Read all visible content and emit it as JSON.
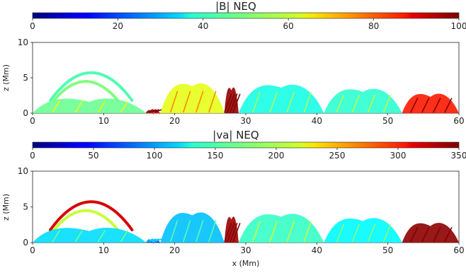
{
  "chart_data": [
    {
      "type": "heatmap",
      "title": "|B| NEQ",
      "colorbar": {
        "range": [
          0,
          100
        ],
        "ticks": [
          "0",
          "20",
          "40",
          "60",
          "80",
          "100"
        ],
        "colormap": "jet"
      },
      "xlim": [
        0,
        60
      ],
      "ylim": [
        0,
        10
      ],
      "xticks": [
        "0",
        "10",
        "20",
        "30",
        "40",
        "50",
        "60"
      ],
      "yticks": [
        "0",
        "5",
        "10"
      ],
      "xlabel": "",
      "ylabel": "z (Mm)",
      "structures": [
        {
          "kind": "arc",
          "x0": 2.5,
          "x1": 14,
          "peak": 5.6,
          "value": 45
        },
        {
          "kind": "arc",
          "x0": 3,
          "x1": 12,
          "peak": 4.3,
          "value": 50
        },
        {
          "kind": "lump",
          "x0": 0,
          "x1": 16,
          "peak": 2.6,
          "value": 48
        },
        {
          "kind": "lump",
          "x0": 16,
          "x1": 18,
          "peak": 0.8,
          "value": 90
        },
        {
          "kind": "lump",
          "x0": 18,
          "x1": 27,
          "peak": 4.8,
          "value": 60
        },
        {
          "kind": "lump",
          "x0": 27,
          "x1": 29,
          "peak": 4.2,
          "value": 98
        },
        {
          "kind": "lump",
          "x0": 29,
          "x1": 41,
          "peak": 4.6,
          "value": 40
        },
        {
          "kind": "lump",
          "x0": 41,
          "x1": 52,
          "peak": 4.0,
          "value": 42
        },
        {
          "kind": "lump",
          "x0": 52,
          "x1": 60,
          "peak": 3.3,
          "value": 85
        }
      ]
    },
    {
      "type": "heatmap",
      "title": "|va| NEQ",
      "colorbar": {
        "range": [
          0,
          350
        ],
        "ticks": [
          "0",
          "50",
          "100",
          "150",
          "200",
          "250",
          "300",
          "350"
        ],
        "colormap": "jet"
      },
      "xlim": [
        0,
        60
      ],
      "ylim": [
        0,
        10
      ],
      "xticks": [
        "0",
        "10",
        "20",
        "30",
        "40",
        "50",
        "60"
      ],
      "yticks": [
        "0",
        "5",
        "10"
      ],
      "xlabel": "x (Mm)",
      "ylabel": "z (Mm)",
      "structures": [
        {
          "kind": "arc",
          "x0": 2.5,
          "x1": 14,
          "peak": 5.6,
          "value": 320
        },
        {
          "kind": "arc",
          "x0": 3,
          "x1": 12,
          "peak": 4.3,
          "value": 200
        },
        {
          "kind": "lump",
          "x0": 0,
          "x1": 16,
          "peak": 2.6,
          "value": 120
        },
        {
          "kind": "lump",
          "x0": 16,
          "x1": 18,
          "peak": 0.8,
          "value": 60
        },
        {
          "kind": "lump",
          "x0": 18,
          "x1": 27,
          "peak": 4.8,
          "value": 110
        },
        {
          "kind": "lump",
          "x0": 27,
          "x1": 29,
          "peak": 4.2,
          "value": 340
        },
        {
          "kind": "lump",
          "x0": 29,
          "x1": 41,
          "peak": 4.6,
          "value": 150
        },
        {
          "kind": "lump",
          "x0": 41,
          "x1": 52,
          "peak": 4.0,
          "value": 130
        },
        {
          "kind": "lump",
          "x0": 52,
          "x1": 60,
          "peak": 3.3,
          "value": 345
        }
      ]
    }
  ]
}
